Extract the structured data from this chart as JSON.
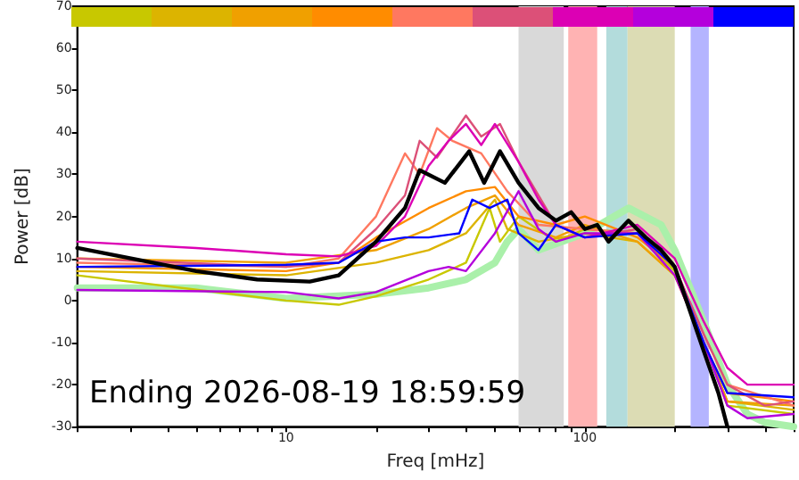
{
  "chart_data": {
    "type": "line",
    "xlabel": "Freq [mHz]",
    "ylabel": "Power [dB]",
    "log": "x",
    "grid": false,
    "marker": "none",
    "line_style": "solid",
    "xlim": [
      2,
      500
    ],
    "ylim": [
      -30,
      70
    ],
    "xticks": [
      {
        "value": 2,
        "label": null
      },
      {
        "value": 3,
        "label": null
      },
      {
        "value": 4,
        "label": null
      },
      {
        "value": 5,
        "label": null
      },
      {
        "value": 6,
        "label": null
      },
      {
        "value": 7,
        "label": null
      },
      {
        "value": 8,
        "label": null
      },
      {
        "value": 9,
        "label": null
      },
      10,
      {
        "value": 20,
        "label": null
      },
      {
        "value": 30,
        "label": null
      },
      {
        "value": 40,
        "label": null
      },
      {
        "value": 50,
        "label": null
      },
      {
        "value": 60,
        "label": null
      },
      {
        "value": 70,
        "label": null
      },
      {
        "value": 80,
        "label": null
      },
      {
        "value": 90,
        "label": null
      },
      100,
      {
        "value": 200,
        "label": null
      },
      {
        "value": 300,
        "label": null
      },
      {
        "value": 400,
        "label": null
      },
      {
        "value": 500,
        "label": null
      }
    ],
    "yticks": [
      -30,
      -20,
      -10,
      0,
      10,
      20,
      30,
      40,
      50,
      60,
      70
    ],
    "bands": [
      {
        "axis": "x",
        "from": 60,
        "to": 85,
        "color": "#d9d9d9"
      },
      {
        "axis": "x",
        "from": 88,
        "to": 110,
        "color": "#ffb3b3"
      },
      {
        "axis": "x",
        "from": 118,
        "to": 139,
        "color": "#b3dcdc"
      },
      {
        "axis": "x",
        "from": 139,
        "to": 200,
        "color": "#dcdcb4"
      },
      {
        "axis": "x",
        "from": 226,
        "to": 260,
        "color": "#b4b4ff"
      }
    ],
    "annotations": [
      "Ending 2026-08-19 18:59:59"
    ],
    "series": [
      {
        "color": "#aaf0aa",
        "x": [
          2,
          5,
          10,
          20,
          30,
          40,
          50,
          55,
          60,
          70,
          100,
          140,
          180,
          200,
          250,
          300,
          350,
          400,
          500
        ],
        "values": [
          3,
          3,
          0.5,
          1.5,
          3,
          5,
          9,
          14,
          17,
          12,
          16,
          22,
          18,
          12,
          -5,
          -20,
          -27,
          -29,
          -30
        ]
      },
      {
        "color": "#c8c800",
        "x": [
          2,
          10,
          15,
          20,
          30,
          40,
          48,
          52,
          60,
          80,
          100,
          150,
          200,
          250,
          300,
          500
        ],
        "values": [
          6,
          0,
          -1,
          1,
          5,
          9,
          22,
          14,
          20,
          14,
          17,
          16,
          7,
          -10,
          -25,
          -27
        ]
      },
      {
        "color": "#dcb400",
        "x": [
          2,
          10,
          20,
          30,
          40,
          50,
          55,
          70,
          100,
          150,
          200,
          250,
          300,
          500
        ],
        "values": [
          7,
          6,
          9,
          12,
          16,
          24,
          17,
          14,
          16,
          14,
          6,
          -10,
          -24,
          -26
        ]
      },
      {
        "color": "#f0a000",
        "x": [
          2,
          10,
          20,
          30,
          40,
          50,
          60,
          80,
          100,
          150,
          200,
          250,
          300,
          500
        ],
        "values": [
          10,
          9,
          12,
          17,
          22,
          25,
          18,
          15,
          18,
          14,
          6,
          -10,
          -24,
          -25
        ]
      },
      {
        "color": "#ff8c00",
        "x": [
          2,
          10,
          15,
          20,
          30,
          40,
          50,
          60,
          80,
          100,
          150,
          200,
          250,
          300,
          500
        ],
        "values": [
          8,
          7,
          9,
          15,
          22,
          26,
          27,
          20,
          18,
          20,
          15,
          8,
          -10,
          -22,
          -24
        ]
      },
      {
        "color": "#ff7860",
        "x": [
          2,
          10,
          15,
          20,
          25,
          28,
          32,
          36,
          45,
          55,
          70,
          100,
          150,
          200,
          250,
          300,
          500
        ],
        "values": [
          9,
          8,
          10,
          20,
          35,
          30,
          41,
          38,
          35,
          26,
          18,
          17,
          16,
          8,
          -8,
          -20,
          -25
        ]
      },
      {
        "color": "#dc5078",
        "x": [
          2,
          10,
          15,
          20,
          25,
          28,
          32,
          40,
          45,
          52,
          60,
          70,
          80,
          100,
          150,
          200,
          250,
          300,
          400,
          500
        ],
        "values": [
          10,
          8,
          9,
          17,
          25,
          38,
          34,
          44,
          39,
          42,
          33,
          25,
          18,
          15,
          17,
          8,
          -8,
          -20,
          -25,
          -24
        ]
      },
      {
        "color": "#dc00b4",
        "x": [
          2,
          5,
          10,
          15,
          20,
          25,
          30,
          35,
          40,
          45,
          50,
          60,
          70,
          80,
          100,
          150,
          200,
          250,
          300,
          350,
          500
        ],
        "values": [
          14,
          12.5,
          11,
          10.5,
          13,
          20,
          32,
          38,
          42,
          37,
          42,
          33,
          24,
          18,
          15,
          18,
          10,
          -5,
          -16,
          -20,
          -20
        ]
      },
      {
        "color": "#b400dc",
        "x": [
          2,
          10,
          15,
          20,
          30,
          35,
          40,
          50,
          60,
          70,
          80,
          100,
          150,
          200,
          250,
          300,
          350,
          500
        ],
        "values": [
          2.5,
          2,
          0.5,
          2,
          7,
          8,
          7,
          16,
          26,
          17,
          14,
          16,
          16,
          6,
          -10,
          -25,
          -28,
          -27
        ]
      },
      {
        "color": "#0000ff",
        "x": [
          2,
          10,
          15,
          20,
          25,
          30,
          38,
          42,
          48,
          55,
          60,
          70,
          80,
          100,
          150,
          200,
          250,
          300,
          500
        ],
        "values": [
          8,
          8.5,
          9,
          14,
          15,
          15,
          16,
          24,
          22,
          24,
          16,
          12,
          18,
          15,
          16,
          8,
          -10,
          -22,
          -23
        ]
      },
      {
        "color": "#000000",
        "x": [
          2,
          5,
          8,
          12,
          15,
          20,
          25,
          28,
          34,
          41,
          46,
          52,
          60,
          70,
          80,
          90,
          100,
          110,
          120,
          140,
          160,
          180,
          200,
          250,
          280,
          300
        ],
        "values": [
          12.5,
          7,
          5,
          4.5,
          6,
          14,
          22,
          31,
          28,
          35.5,
          28,
          35.5,
          28,
          22,
          19,
          21,
          17,
          18,
          14,
          19,
          15,
          12,
          8,
          -12,
          -22,
          -30
        ]
      }
    ]
  }
}
